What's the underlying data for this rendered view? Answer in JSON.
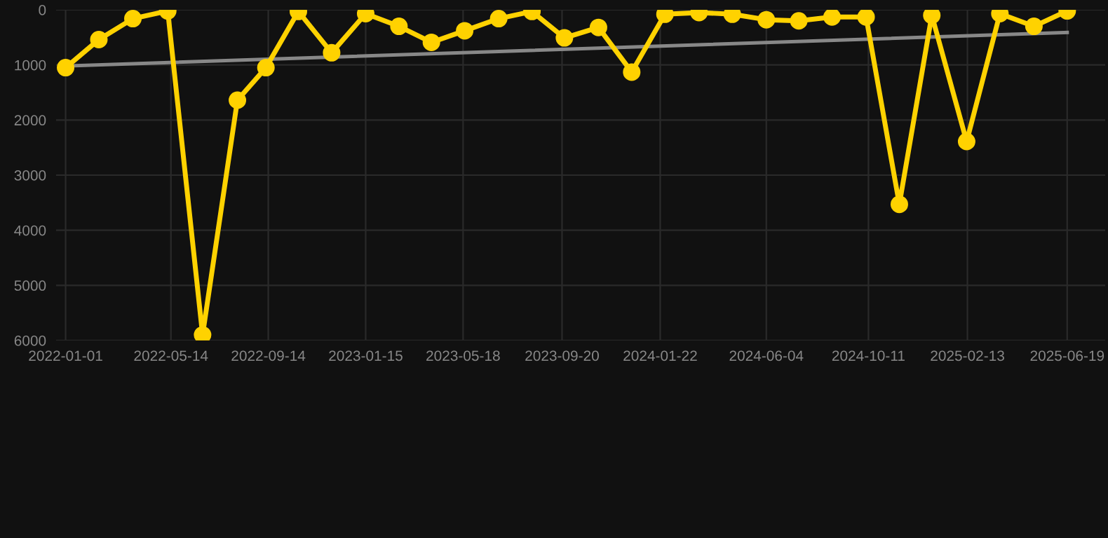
{
  "chart_data": {
    "type": "line",
    "x": [
      "2022-01-01",
      "2022-02-12",
      "2022-03-27",
      "2022-05-10",
      "2022-06-23",
      "2022-08-06",
      "2022-09-11",
      "2022-10-22",
      "2022-12-03",
      "2023-01-15",
      "2023-02-26",
      "2023-04-08",
      "2023-05-20",
      "2023-07-02",
      "2023-08-13",
      "2023-09-23",
      "2023-11-05",
      "2023-12-17",
      "2024-01-28",
      "2024-03-11",
      "2024-04-22",
      "2024-06-04",
      "2024-07-15",
      "2024-08-26",
      "2024-10-08",
      "2024-11-19",
      "2024-12-30",
      "2025-02-12",
      "2025-03-26",
      "2025-05-08",
      "2025-06-19"
    ],
    "series": [
      {
        "color": "#ffd200",
        "marker": "circle",
        "values": [
          1050,
          540,
          160,
          20,
          5900,
          1640,
          1050,
          30,
          780,
          70,
          300,
          590,
          380,
          160,
          30,
          510,
          320,
          1130,
          80,
          50,
          80,
          180,
          200,
          130,
          130,
          3530,
          100,
          2390,
          70,
          300,
          20
        ]
      },
      {
        "color": "#888888",
        "marker": "none",
        "x": [
          "2022-01-01",
          "2025-06-19"
        ],
        "values": [
          1020,
          410
        ]
      }
    ],
    "xlim": [
      "2021-12-20",
      "2025-08-06"
    ],
    "xticks": [
      "2022-01-01",
      "2022-05-14",
      "2022-09-14",
      "2023-01-15",
      "2023-05-18",
      "2023-09-20",
      "2024-01-22",
      "2024-06-04",
      "2024-10-11",
      "2025-02-13",
      "2025-06-19"
    ],
    "ylim": [
      6000,
      0
    ],
    "yticks": [
      0,
      1000,
      2000,
      3000,
      4000,
      5000,
      6000
    ],
    "grid": true,
    "line_style": "solid"
  }
}
